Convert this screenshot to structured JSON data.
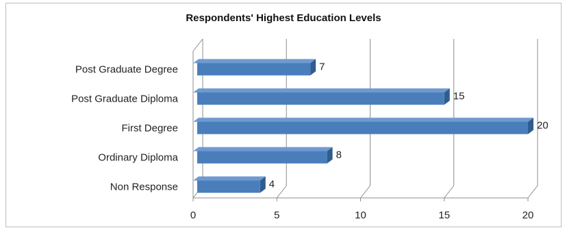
{
  "chart_data": {
    "type": "bar",
    "orientation": "horizontal",
    "style": "3d-clustered",
    "title": "Respondents' Highest Education Levels",
    "categories": [
      "Post Graduate Degree",
      "Post Graduate Diploma",
      "First Degree",
      "Ordinary Diploma",
      "Non Response"
    ],
    "values": [
      7,
      15,
      20,
      8,
      4
    ],
    "data_labels": [
      "7",
      "15",
      "20",
      "8",
      "4"
    ],
    "xlim": [
      0,
      20
    ],
    "x_ticks": [
      0,
      5,
      10,
      15,
      20
    ],
    "x_tick_labels": [
      "0",
      "5",
      "10",
      "15",
      "20"
    ],
    "grid": "vertical",
    "legend": "none",
    "colors": {
      "bar_front": "#4a7ebb",
      "bar_top": "#6f9ad0",
      "bar_side": "#2f5d8f",
      "grid": "#8c8c8c"
    }
  }
}
